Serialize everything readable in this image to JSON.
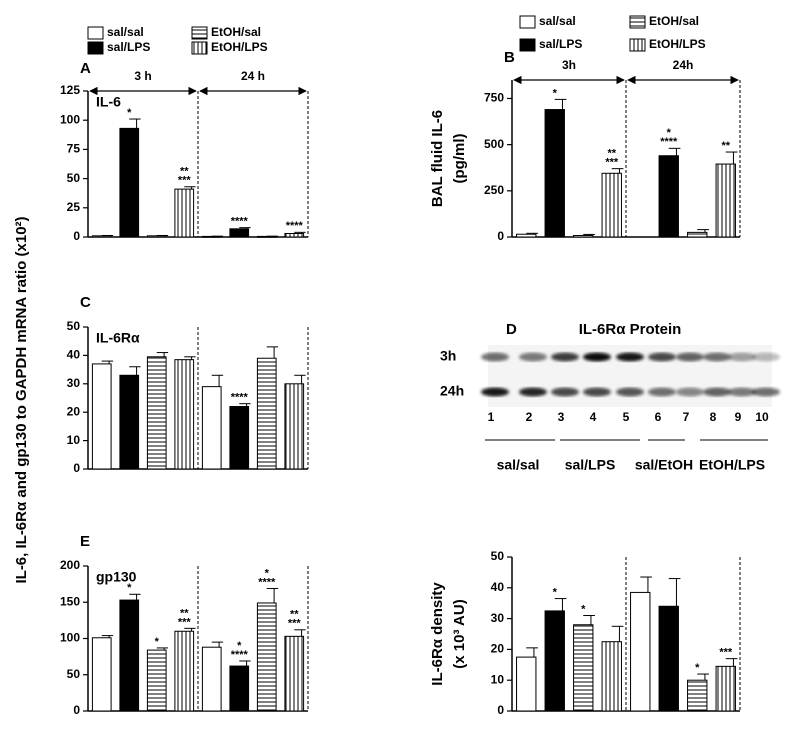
{
  "shared_ylabel": "IL-6, IL-6Rα and gp130 to GAPDH mRNA ratio (x10²)",
  "chart_data": [
    {
      "type": "bar",
      "panel": "A",
      "label": "IL-6",
      "categories": [
        "3 h",
        "24 h"
      ],
      "group_arrows": true,
      "ylim": [
        0,
        125
      ],
      "yticks": [
        0,
        25,
        50,
        75,
        100,
        125
      ],
      "series": [
        {
          "name": "sal/sal",
          "color": "#ffffff",
          "hatch": "none",
          "values": [
            1,
            0.5
          ],
          "errors": [
            0.3,
            0.2
          ],
          "annotations": [
            null,
            null
          ]
        },
        {
          "name": "sal/LPS",
          "color": "#000000",
          "hatch": "none",
          "values": [
            93,
            7
          ],
          "errors": [
            8,
            1
          ],
          "annotations": [
            [
              "*"
            ],
            [
              "****"
            ]
          ]
        },
        {
          "name": "EtOH/sal",
          "color": "#ffffff",
          "hatch": "horizontal",
          "values": [
            1,
            0.5
          ],
          "errors": [
            0.3,
            0.2
          ],
          "annotations": [
            null,
            null
          ]
        },
        {
          "name": "EtOH/LPS",
          "color": "#ffffff",
          "hatch": "vertical",
          "values": [
            41,
            3
          ],
          "errors": [
            2,
            1
          ],
          "annotations": [
            [
              "**",
              "***"
            ],
            [
              "****"
            ]
          ]
        }
      ]
    },
    {
      "type": "bar",
      "panel": "B",
      "ylabel": [
        "BAL fluid IL-6",
        "(pg/ml)"
      ],
      "categories": [
        "3h",
        "24h"
      ],
      "group_arrows": true,
      "ylim": [
        0,
        850
      ],
      "yticks": [
        0,
        250,
        500,
        750
      ],
      "series": [
        {
          "name": "sal/sal",
          "color": "#ffffff",
          "hatch": "none",
          "values": [
            15,
            null
          ],
          "errors": [
            5,
            null
          ],
          "annotations": [
            null,
            null
          ]
        },
        {
          "name": "sal/LPS",
          "color": "#000000",
          "hatch": "none",
          "values": [
            690,
            440
          ],
          "errors": [
            55,
            40
          ],
          "annotations": [
            [
              "*"
            ],
            [
              "*",
              "****"
            ]
          ]
        },
        {
          "name": "EtOH/sal",
          "color": "#ffffff",
          "hatch": "horizontal",
          "values": [
            8,
            25
          ],
          "errors": [
            6,
            15
          ],
          "annotations": [
            null,
            null
          ]
        },
        {
          "name": "EtOH/LPS",
          "color": "#ffffff",
          "hatch": "vertical",
          "values": [
            345,
            395
          ],
          "errors": [
            25,
            65
          ],
          "annotations": [
            [
              "**",
              "***"
            ],
            [
              "**"
            ]
          ]
        }
      ]
    },
    {
      "type": "bar",
      "panel": "C",
      "label": "IL-6Rα",
      "categories": [
        null,
        null
      ],
      "group_arrows": false,
      "ylim": [
        0,
        50
      ],
      "yticks": [
        0,
        10,
        20,
        30,
        40,
        50
      ],
      "series": [
        {
          "name": "sal/sal",
          "color": "#ffffff",
          "hatch": "none",
          "values": [
            37,
            29
          ],
          "errors": [
            1,
            4
          ],
          "annotations": [
            null,
            null
          ]
        },
        {
          "name": "sal/LPS",
          "color": "#000000",
          "hatch": "none",
          "values": [
            33,
            22
          ],
          "errors": [
            3,
            1
          ],
          "annotations": [
            null,
            [
              "****"
            ]
          ]
        },
        {
          "name": "EtOH/sal",
          "color": "#ffffff",
          "hatch": "horizontal",
          "values": [
            39.5,
            39
          ],
          "errors": [
            1.5,
            4
          ],
          "annotations": [
            null,
            null
          ]
        },
        {
          "name": "EtOH/LPS",
          "color": "#ffffff",
          "hatch": "vertical",
          "values": [
            38.5,
            30
          ],
          "errors": [
            1,
            3
          ],
          "annotations": [
            null,
            null
          ]
        }
      ]
    },
    {
      "type": "bar",
      "panel": "E",
      "label": "gp130",
      "categories": [
        null,
        null
      ],
      "group_arrows": false,
      "ylim": [
        0,
        200
      ],
      "yticks": [
        0,
        50,
        100,
        150,
        200
      ],
      "series": [
        {
          "name": "sal/sal",
          "color": "#ffffff",
          "hatch": "none",
          "values": [
            101,
            88
          ],
          "errors": [
            3,
            7
          ],
          "annotations": [
            null,
            null
          ]
        },
        {
          "name": "sal/LPS",
          "color": "#000000",
          "hatch": "none",
          "values": [
            153,
            62
          ],
          "errors": [
            8,
            7
          ],
          "annotations": [
            [
              "*"
            ],
            [
              "*",
              "****"
            ]
          ]
        },
        {
          "name": "EtOH/sal",
          "color": "#ffffff",
          "hatch": "horizontal",
          "values": [
            84,
            149
          ],
          "errors": [
            3,
            20
          ],
          "annotations": [
            [
              "*"
            ],
            [
              "*",
              "****"
            ]
          ]
        },
        {
          "name": "EtOH/LPS",
          "color": "#ffffff",
          "hatch": "vertical",
          "values": [
            110,
            103
          ],
          "errors": [
            4,
            9
          ],
          "annotations": [
            [
              "**",
              "***"
            ],
            [
              "**",
              "***"
            ]
          ]
        }
      ]
    },
    {
      "type": "bar",
      "ylabel": [
        "IL-6Rα density",
        "(x 10³ AU)"
      ],
      "categories": [
        null,
        null
      ],
      "group_arrows": false,
      "ylim": [
        0,
        50
      ],
      "yticks": [
        0,
        10,
        20,
        30,
        40,
        50
      ],
      "series": [
        {
          "name": "sal/sal",
          "color": "#ffffff",
          "hatch": "none",
          "values": [
            17.5,
            38.5
          ],
          "errors": [
            3,
            5
          ],
          "annotations": [
            null,
            null
          ]
        },
        {
          "name": "sal/LPS",
          "color": "#000000",
          "hatch": "none",
          "values": [
            32.5,
            34
          ],
          "errors": [
            4,
            9
          ],
          "annotations": [
            [
              "*"
            ],
            null
          ]
        },
        {
          "name": "EtOH/sal",
          "color": "#ffffff",
          "hatch": "horizontal",
          "values": [
            28,
            10
          ],
          "errors": [
            3,
            2
          ],
          "annotations": [
            [
              "*"
            ],
            [
              "*"
            ]
          ]
        },
        {
          "name": "EtOH/LPS",
          "color": "#ffffff",
          "hatch": "vertical",
          "values": [
            22.5,
            14.5
          ],
          "errors": [
            5,
            2.5
          ],
          "annotations": [
            null,
            [
              "***"
            ]
          ]
        }
      ]
    }
  ],
  "blot": {
    "panel": "D",
    "title": "IL-6Rα Protein",
    "rows": [
      "3h",
      "24h"
    ],
    "lanes": [
      "1",
      "2",
      "3",
      "4",
      "5",
      "6",
      "7",
      "8",
      "9",
      "10"
    ],
    "groups": [
      "sal/sal",
      "sal/LPS",
      "sal/EtOH",
      "EtOH/LPS"
    ]
  }
}
